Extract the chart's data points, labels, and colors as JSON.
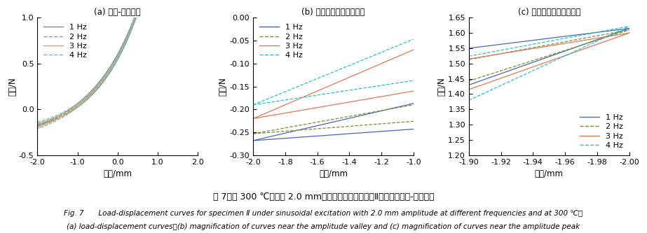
{
  "colors": {
    "1hz": "#4466bb",
    "2hz": "#7a8c3a",
    "3hz": "#e07858",
    "4hz": "#30c0c0"
  },
  "colors_a": {
    "1hz": "#888888",
    "2hz": "#999999",
    "3hz": "#c8a870",
    "4hz": "#70c0c0"
  },
  "linestyles": {
    "1hz": "-",
    "2hz": "--",
    "3hz": "-",
    "4hz": "--"
  },
  "labels": [
    "1 Hz",
    "2 Hz",
    "3 Hz",
    "4 Hz"
  ],
  "panel_a": {
    "xlim": [
      -2.0,
      2.0
    ],
    "ylim": [
      -0.5,
      1.0
    ],
    "yticks": [
      -0.5,
      0.0,
      0.5,
      1.0
    ],
    "xticks": [
      -2.0,
      -1.0,
      0.0,
      1.0,
      2.0
    ],
    "xlabel": "位移/mm",
    "ylabel": "载荷/N",
    "title": "(a) 载荷-位移曲线"
  },
  "panel_b": {
    "xlim": [
      -2.0,
      -1.0
    ],
    "ylim": [
      -0.3,
      0.0
    ],
    "yticks": [
      0.0,
      -0.05,
      -0.1,
      -0.15,
      -0.2,
      -0.25,
      -0.3
    ],
    "xticks": [
      -2.0,
      -1.8,
      -1.6,
      -1.4,
      -1.2,
      -1.0
    ],
    "xlabel": "位移/mm",
    "ylabel": "载荷/N",
    "title": "(b) 振幅谷値附近曲线放大"
  },
  "panel_c": {
    "xlim": [
      -1.9,
      -2.0
    ],
    "ylim": [
      1.2,
      1.65
    ],
    "yticks": [
      1.2,
      1.25,
      1.3,
      1.35,
      1.4,
      1.45,
      1.5,
      1.55,
      1.6,
      1.65
    ],
    "xticks": [
      -1.9,
      -1.92,
      -1.94,
      -1.96,
      -1.98,
      -2.0
    ],
    "xlabel": "位移/mm",
    "ylabel": "载荷/N",
    "title": "(c) 振幅峰値附近曲线放大"
  },
  "figure_title": "图 7　在 300 ℃，振幅 2.0 mm，不同频率激励作用下Ⅱ类试样的载荷-位移曲线",
  "fig_cap1": "Fig. 7  Load-displacement curves for specimen Ⅱ under sinusoidal excitation with 2.0 mm amplitude at different frequencies and at 300 ℃：",
  "fig_cap2": "(a) load-displacement curves；(b) magnification of curves near the amplitude valley and (c) magnification of curves near the amplitude peak"
}
